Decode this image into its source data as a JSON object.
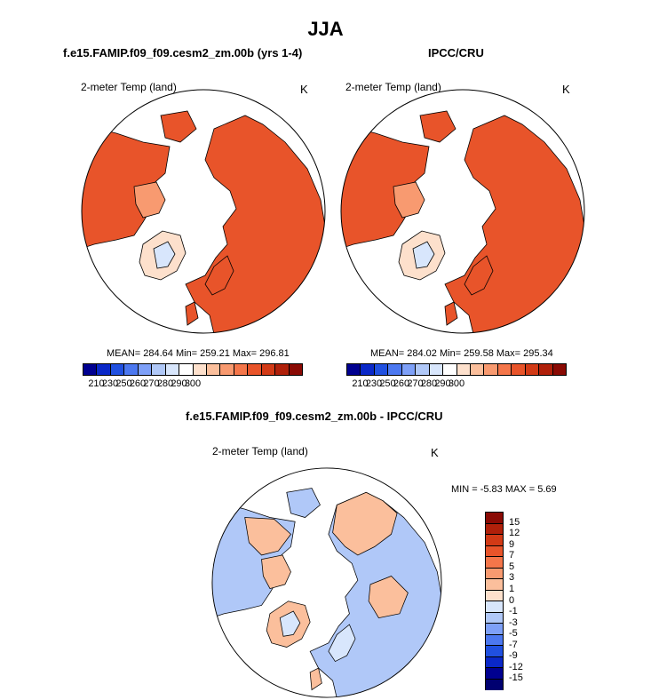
{
  "title": "JJA",
  "panels": {
    "model": {
      "title": "f.e15.FAMIP.f09_f09.cesm2_zm.00b (yrs 1-4)",
      "variable": "2-meter Temp (land)",
      "units": "K",
      "stats": "MEAN= 284.64  Min= 259.21  Max= 296.81"
    },
    "obs": {
      "title": "IPCC/CRU",
      "variable": "2-meter Temp (land)",
      "units": "K",
      "stats": "MEAN= 284.02  Min= 259.58  Max= 295.34"
    },
    "diff": {
      "title": "f.e15.FAMIP.f09_f09.cesm2_zm.00b - IPCC/CRU",
      "variable": "2-meter Temp (land)",
      "units": "K",
      "stats": "MIN =  -5.83 MAX =   5.69"
    }
  },
  "colorbar_abs": {
    "ticks": [
      "210",
      "230",
      "250",
      "260",
      "270",
      "280",
      "290",
      "300"
    ],
    "colors": [
      "#000090",
      "#0a28c8",
      "#2050e0",
      "#4c78f0",
      "#7ea0f8",
      "#b0c8f8",
      "#d8e6fc",
      "#ffffff",
      "#fde0cc",
      "#fbbf9c",
      "#f89a70",
      "#f4764a",
      "#e8542a",
      "#d23a16",
      "#b0200a",
      "#8a0a04"
    ]
  },
  "colorbar_diff": {
    "ticks": [
      "15",
      "12",
      "9",
      "7",
      "5",
      "3",
      "1",
      "0",
      "-1",
      "-3",
      "-5",
      "-7",
      "-9",
      "-12",
      "-15"
    ],
    "colors": [
      "#8a0a04",
      "#b0200a",
      "#d23a16",
      "#e8542a",
      "#f4764a",
      "#f89a70",
      "#fbbf9c",
      "#fde0cc",
      "#d8e6fc",
      "#b0c8f8",
      "#7ea0f8",
      "#4c78f0",
      "#2050e0",
      "#0a28c8",
      "#000090",
      "#000070"
    ]
  },
  "map_colors": {
    "warm": "#e8542a",
    "warm_dark": "#d23a16",
    "warm_light": "#f89a70",
    "greenland": "#fde0cc",
    "greenland_cold": "#d8e6fc",
    "diff_pos": "#fbbf9c",
    "diff_neg": "#b0c8f8",
    "diff_zero": "#d8e6fc"
  }
}
